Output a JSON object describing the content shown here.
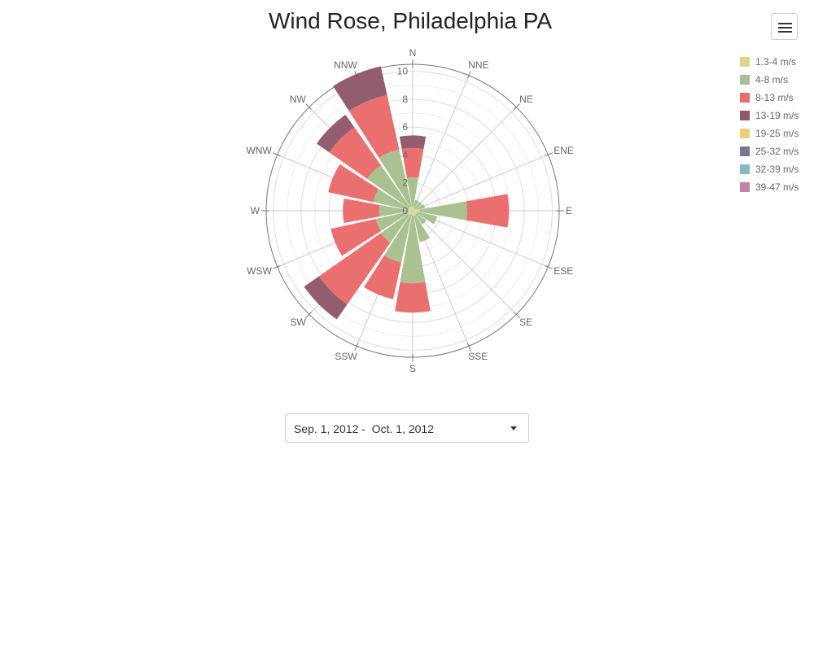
{
  "title": "Wind Rose, Philadelphia PA",
  "menu": {
    "icon": "hamburger-menu-icon"
  },
  "date_range": {
    "text": "Sep. 1, 2012 -  Oct. 1, 2012",
    "icon": "caret-down-icon"
  },
  "chart_data": {
    "type": "wind-rose",
    "title": "Wind Rose, Philadelphia PA",
    "directions": [
      "N",
      "NNE",
      "NE",
      "ENE",
      "E",
      "ESE",
      "SE",
      "SSE",
      "S",
      "SSW",
      "SW",
      "WSW",
      "W",
      "WNW",
      "NW",
      "NNW"
    ],
    "radial_ticks": [
      0,
      2,
      4,
      6,
      8,
      10
    ],
    "radial_max": 10.5,
    "stacking": "stacked",
    "grid": true,
    "legend_position": "right",
    "series": [
      {
        "name": "1.3-4 m/s",
        "color": "#d9d78f",
        "values": [
          0.3,
          0.2,
          0.2,
          0.3,
          0.5,
          0.3,
          0.3,
          0.4,
          0.3,
          0.3,
          0.4,
          0.3,
          0.3,
          0.3,
          0.3,
          0.3
        ]
      },
      {
        "name": "4-8 m/s",
        "color": "#a8c090",
        "values": [
          2.1,
          0.6,
          0.6,
          0.6,
          3.4,
          1.5,
          0.9,
          1.9,
          4.9,
          3.5,
          2.4,
          2.4,
          2.1,
          2.6,
          3.7,
          4.2
        ]
      },
      {
        "name": "8-13 m/s",
        "color": "#ea6c6c",
        "values": [
          2.1,
          0,
          0,
          0,
          3.0,
          0,
          0,
          0,
          2.1,
          2.7,
          5.4,
          3.3,
          2.6,
          3.3,
          3.3,
          4.0
        ]
      },
      {
        "name": "13-19 m/s",
        "color": "#905a6c",
        "values": [
          0.9,
          0,
          0,
          0,
          0,
          0,
          0,
          0,
          0,
          0,
          1.3,
          0,
          0,
          0,
          1.1,
          2.1
        ]
      },
      {
        "name": "19-25 m/s",
        "color": "#ebcf7c",
        "values": [
          0,
          0,
          0,
          0,
          0,
          0,
          0,
          0,
          0,
          0,
          0,
          0,
          0,
          0,
          0,
          0
        ]
      },
      {
        "name": "25-32 m/s",
        "color": "#7d7590",
        "values": [
          0,
          0,
          0,
          0,
          0,
          0,
          0,
          0,
          0,
          0,
          0,
          0,
          0,
          0,
          0,
          0
        ]
      },
      {
        "name": "32-39 m/s",
        "color": "#86bcbc",
        "values": [
          0,
          0,
          0,
          0,
          0,
          0,
          0,
          0,
          0,
          0,
          0,
          0,
          0,
          0,
          0,
          0
        ]
      },
      {
        "name": "39-47 m/s",
        "color": "#c482a4",
        "values": [
          0,
          0,
          0,
          0,
          0,
          0,
          0,
          0,
          0,
          0,
          0,
          0,
          0,
          0,
          0,
          0
        ]
      }
    ]
  }
}
